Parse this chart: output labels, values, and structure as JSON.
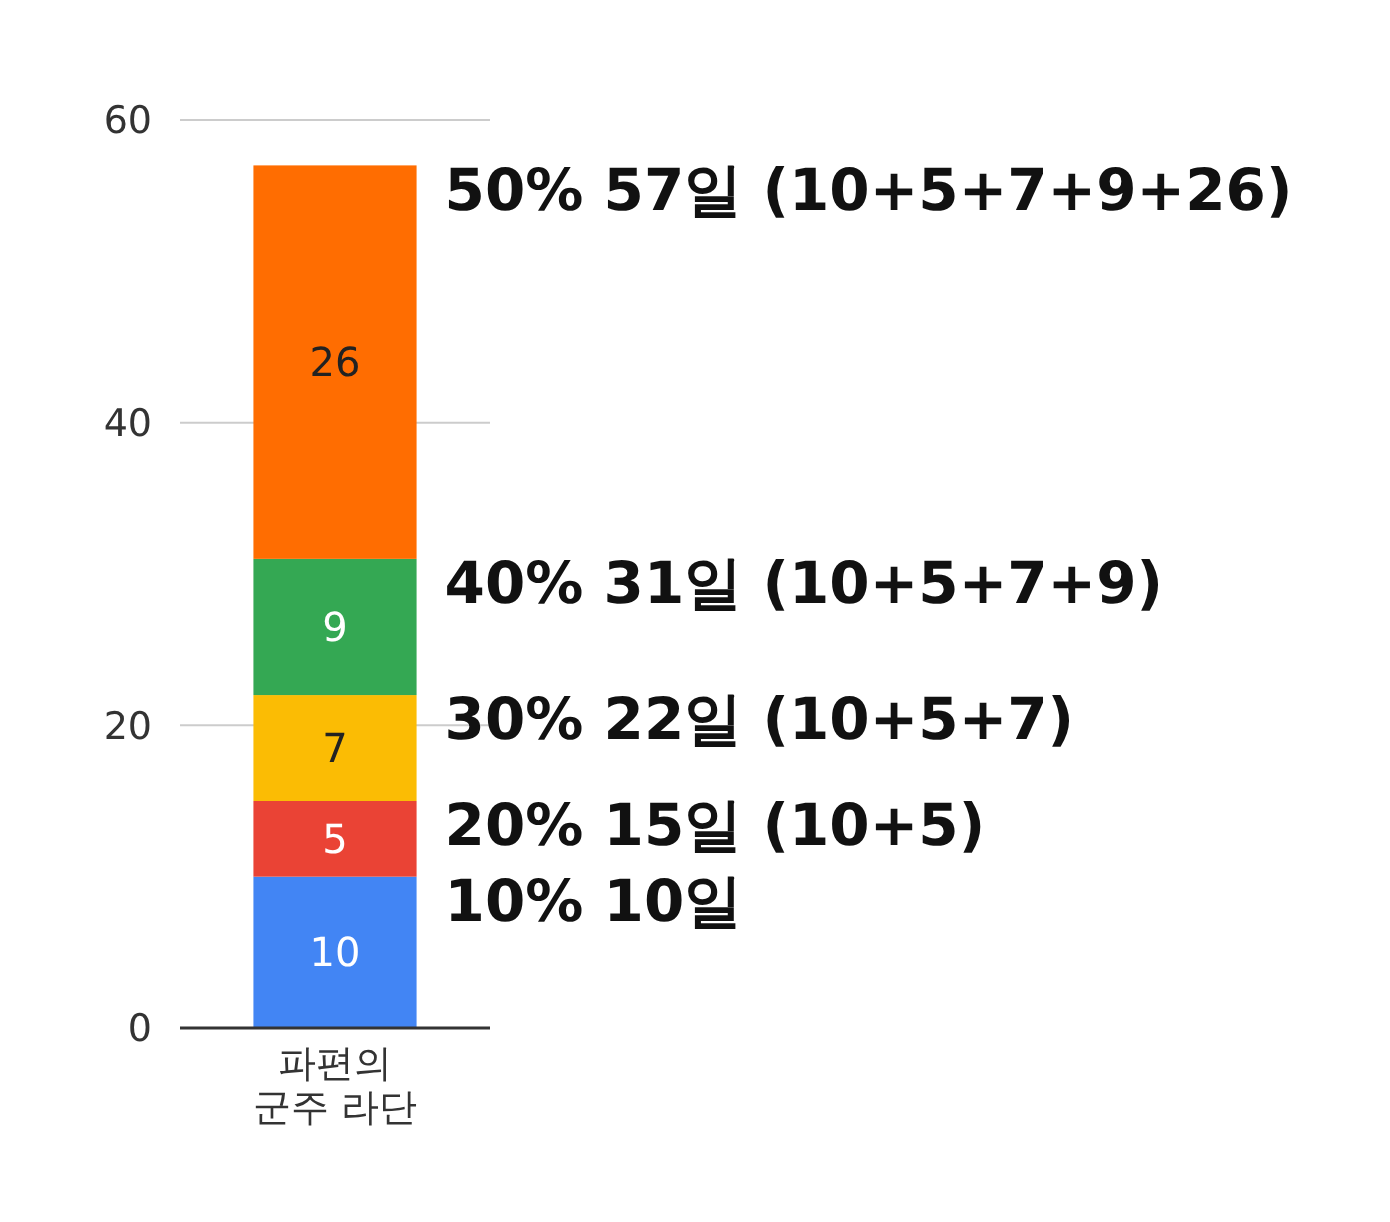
{
  "chart_data": {
    "type": "bar",
    "stacked": true,
    "categories": [
      "파편의 군주 라단"
    ],
    "series": [
      {
        "color": "#4285f4",
        "values": [
          10
        ]
      },
      {
        "color": "#ea4335",
        "values": [
          5
        ]
      },
      {
        "color": "#fbbc04",
        "values": [
          7
        ]
      },
      {
        "color": "#34a853",
        "values": [
          9
        ]
      },
      {
        "color": "#ff6d01",
        "values": [
          26
        ]
      }
    ],
    "ylim": [
      0,
      60
    ],
    "yticks": [
      0,
      20,
      40,
      60
    ],
    "grid": "y",
    "data_labels": true,
    "annotations": [
      {
        "text": "10% 10일",
        "x": "파편의 군주 라단",
        "y": 10
      },
      {
        "text": "20% 15일 (10+5)",
        "x": "파편의 군주 라단",
        "y": 15
      },
      {
        "text": "30% 22일 (10+5+7)",
        "x": "파편의 군주 라단",
        "y": 22
      },
      {
        "text": "40% 31일 (10+5+7+9)",
        "x": "파편의 군주 라단",
        "y": 31
      },
      {
        "text": "50% 57일 (10+5+7+9+26)",
        "x": "파편의 군주 라단",
        "y": 57
      }
    ]
  }
}
